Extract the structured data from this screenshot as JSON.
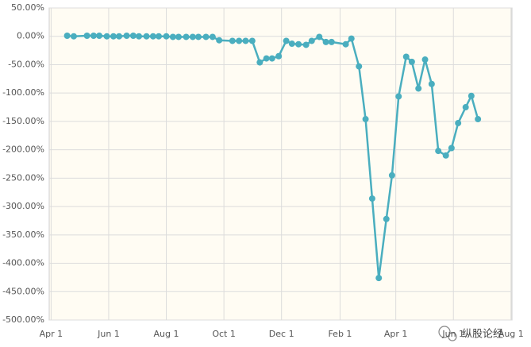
{
  "chart_data": {
    "type": "line",
    "x": [
      17,
      24,
      38,
      45,
      51,
      59,
      66,
      72,
      80,
      87,
      93,
      101,
      108,
      114,
      122,
      129,
      135,
      143,
      150,
      156,
      164,
      171,
      178,
      192,
      199,
      206,
      213,
      221,
      228,
      234,
      241,
      249,
      255,
      262,
      270,
      276,
      284,
      291,
      297,
      312,
      318,
      326,
      333,
      340,
      347,
      355,
      361,
      368,
      376,
      382,
      389,
      396,
      403,
      410,
      418,
      424,
      431,
      439,
      445,
      452
    ],
    "series": [
      {
        "name": "return",
        "color": "#4aaebf",
        "values": [
          1,
          0,
          1,
          1,
          1,
          0,
          0,
          0,
          1,
          1,
          0,
          0,
          0,
          0,
          0,
          -1,
          -1,
          -1,
          -1,
          -1,
          -1,
          -1,
          -7,
          -8,
          -8,
          -8,
          -8,
          -46,
          -39,
          -39,
          -35,
          -8,
          -13,
          -14,
          -15,
          -8,
          -1,
          -10,
          -10,
          -14,
          -4,
          -53,
          -146,
          -286,
          -426,
          -322,
          -245,
          -106,
          -36,
          -45,
          -92,
          -41,
          -84,
          -202,
          -210,
          -197,
          -153,
          -125,
          -105,
          -146
        ]
      }
    ],
    "xlim": [
      -2,
      488
    ],
    "xticks": [
      {
        "value": 0,
        "label": "Apr 1"
      },
      {
        "value": 61,
        "label": "Jun 1"
      },
      {
        "value": 122,
        "label": "Aug 1"
      },
      {
        "value": 183,
        "label": "Oct 1"
      },
      {
        "value": 244,
        "label": "Dec 1"
      },
      {
        "value": 306,
        "label": "Feb 1"
      },
      {
        "value": 365,
        "label": "Apr 1"
      },
      {
        "value": 426,
        "label": "Jun 1"
      },
      {
        "value": 487,
        "label": "Aug 1"
      }
    ],
    "ylim": [
      -500,
      50
    ],
    "yticks": [
      {
        "value": 50,
        "label": "50.00%"
      },
      {
        "value": 0,
        "label": "0.00%"
      },
      {
        "value": -50,
        "label": "-50.00%"
      },
      {
        "value": -100,
        "label": "-100.00%"
      },
      {
        "value": -150,
        "label": "-150.00%"
      },
      {
        "value": -200,
        "label": "-200.00%"
      },
      {
        "value": -250,
        "label": "-250.00%"
      },
      {
        "value": -300,
        "label": "-300.00%"
      },
      {
        "value": -350,
        "label": "-350.00%"
      },
      {
        "value": -400,
        "label": "-400.00%"
      },
      {
        "value": -450,
        "label": "-450.00%"
      },
      {
        "value": -500,
        "label": "-500.00%"
      }
    ],
    "grid": true,
    "watermark": "纵股论经"
  }
}
